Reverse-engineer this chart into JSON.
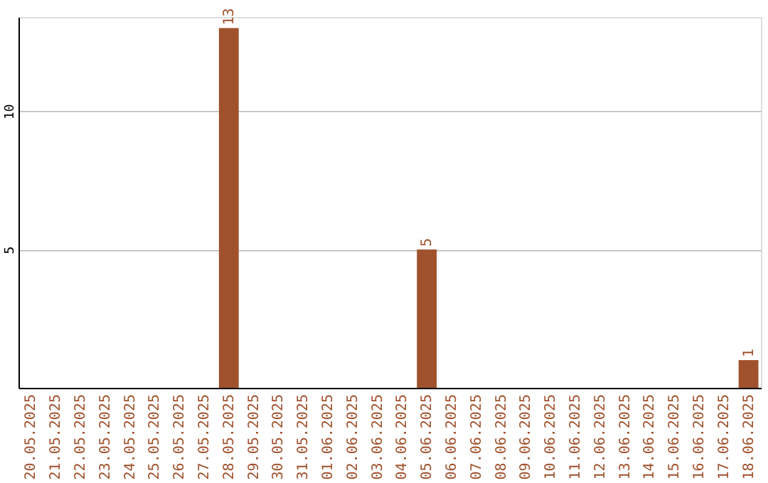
{
  "chart_data": {
    "type": "bar",
    "categories": [
      "20.05.2025",
      "21.05.2025",
      "22.05.2025",
      "23.05.2025",
      "24.05.2025",
      "25.05.2025",
      "26.05.2025",
      "27.05.2025",
      "28.05.2025",
      "29.05.2025",
      "30.05.2025",
      "31.05.2025",
      "01.06.2025",
      "02.06.2025",
      "03.06.2025",
      "04.06.2025",
      "05.06.2025",
      "06.06.2025",
      "07.06.2025",
      "08.06.2025",
      "09.06.2025",
      "10.06.2025",
      "11.06.2025",
      "12.06.2025",
      "13.06.2025",
      "14.06.2025",
      "15.06.2025",
      "16.06.2025",
      "17.06.2025",
      "18.06.2025"
    ],
    "values": [
      0,
      0,
      0,
      0,
      0,
      0,
      0,
      0,
      13,
      0,
      0,
      0,
      0,
      0,
      0,
      0,
      5,
      0,
      0,
      0,
      0,
      0,
      0,
      0,
      0,
      0,
      0,
      0,
      0,
      1
    ],
    "value_labels": [
      null,
      null,
      null,
      null,
      null,
      null,
      null,
      null,
      "13",
      null,
      null,
      null,
      null,
      null,
      null,
      null,
      "5",
      null,
      null,
      null,
      null,
      null,
      null,
      null,
      null,
      null,
      null,
      null,
      null,
      "1"
    ],
    "color": "#a0522d",
    "ylim": [
      0,
      13.4
    ],
    "yticks": [
      5,
      10
    ],
    "grid": "y"
  }
}
